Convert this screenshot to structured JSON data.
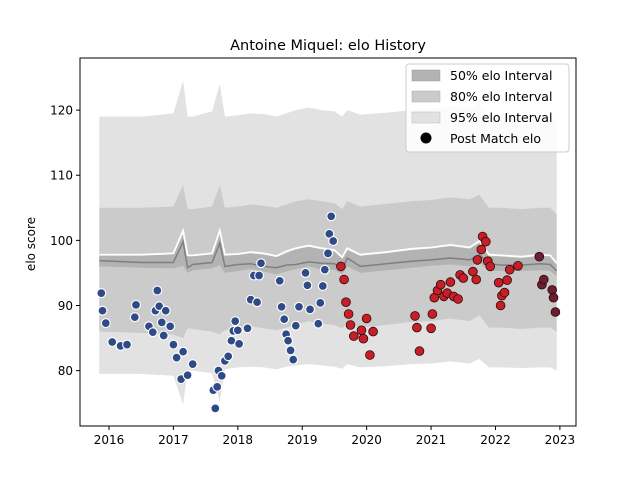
{
  "chart_data": {
    "type": "scatter",
    "title": "Antoine Miquel: elo History",
    "xlabel": "",
    "ylabel": "elo score",
    "xlim": [
      2015.55,
      2023.25
    ],
    "ylim": [
      71.5,
      128.0
    ],
    "x_ticks": [
      2016,
      2017,
      2018,
      2019,
      2020,
      2021,
      2022,
      2023
    ],
    "x_tick_labels": [
      "2016",
      "2017",
      "2018",
      "2019",
      "2020",
      "2021",
      "2022",
      "2023"
    ],
    "y_ticks": [
      80,
      90,
      100,
      110,
      120
    ],
    "y_tick_labels": [
      "80",
      "90",
      "100",
      "110",
      "120"
    ],
    "legend": {
      "placement": "top-right",
      "entries": [
        "50% elo Interval",
        "80% elo Interval",
        "95% elo Interval",
        "Post Match elo"
      ]
    },
    "colors": {
      "band_50": "#b3b3b3",
      "band_80": "#cbcbcb",
      "band_95": "#e2e2e2",
      "median_line": "#7f7f7f",
      "mean_line": "#ffffff",
      "early_points": "#2e4a87",
      "late_points": "#c81e28",
      "final_points": "#6e1e32"
    },
    "intervals": {
      "x": [
        2015.85,
        2016.5,
        2017.0,
        2017.15,
        2017.22,
        2017.3,
        2017.6,
        2017.72,
        2017.8,
        2018.0,
        2018.2,
        2018.4,
        2018.6,
        2018.75,
        2018.9,
        2019.1,
        2019.3,
        2019.5,
        2019.62,
        2019.7,
        2019.9,
        2020.3,
        2020.7,
        2021.0,
        2021.3,
        2021.6,
        2021.75,
        2021.9,
        2022.1,
        2022.4,
        2022.7,
        2022.85,
        2022.95
      ],
      "mean": [
        97.8,
        97.8,
        98.0,
        101.5,
        97.7,
        97.7,
        98.0,
        101.5,
        97.8,
        97.9,
        98.2,
        98.0,
        97.6,
        98.3,
        98.8,
        99.2,
        98.8,
        98.5,
        97.4,
        98.8,
        97.8,
        98.2,
        98.7,
        98.9,
        99.3,
        98.9,
        99.9,
        97.8,
        97.7,
        97.5,
        97.8,
        97.7,
        96.5
      ],
      "median": [
        96.9,
        96.6,
        96.6,
        99.8,
        95.8,
        96.3,
        96.6,
        99.6,
        96.0,
        96.3,
        96.4,
        96.0,
        95.8,
        96.2,
        96.3,
        96.7,
        96.5,
        96.4,
        95.6,
        97.3,
        96.0,
        96.4,
        96.8,
        97.0,
        97.3,
        97.0,
        97.8,
        96.4,
        96.2,
        96.2,
        96.4,
        96.3,
        95.3
      ],
      "p50_low": [
        96.0,
        95.8,
        95.7,
        96.1,
        95.0,
        95.4,
        95.7,
        96.2,
        95.0,
        95.3,
        95.6,
        95.2,
        94.8,
        95.2,
        95.6,
        96.0,
        95.5,
        95.5,
        94.8,
        96.0,
        95.0,
        95.4,
        95.8,
        96.1,
        96.3,
        96.0,
        96.6,
        95.3,
        95.3,
        95.3,
        95.4,
        95.3,
        94.5
      ],
      "p50_high": [
        98.0,
        97.9,
        98.0,
        101.2,
        97.6,
        97.6,
        97.9,
        101.3,
        97.7,
        97.8,
        98.0,
        97.8,
        97.4,
        98.0,
        98.6,
        99.0,
        98.6,
        98.3,
        97.2,
        98.5,
        97.6,
        98.0,
        98.5,
        98.7,
        99.1,
        98.7,
        99.6,
        97.6,
        97.5,
        97.3,
        97.6,
        97.5,
        96.3
      ],
      "p80_low": [
        86.0,
        85.8,
        85.5,
        85.0,
        86.5,
        86.4,
        86.0,
        85.6,
        86.2,
        86.5,
        86.8,
        86.5,
        86.2,
        86.6,
        87.0,
        87.6,
        87.2,
        87.0,
        86.5,
        87.5,
        86.6,
        87.0,
        87.5,
        87.6,
        88.0,
        87.6,
        88.5,
        86.6,
        86.6,
        86.4,
        86.6,
        86.6,
        86.0
      ],
      "p80_high": [
        105.0,
        105.0,
        105.2,
        108.5,
        104.8,
        104.8,
        105.2,
        108.5,
        105.0,
        105.2,
        105.5,
        105.3,
        105.0,
        105.5,
        106.0,
        106.3,
        106.0,
        105.7,
        104.8,
        106.0,
        105.2,
        105.6,
        106.0,
        106.2,
        106.6,
        106.3,
        107.0,
        105.0,
        105.0,
        104.8,
        105.0,
        105.0,
        104.0
      ],
      "p95_low": [
        79.5,
        79.5,
        79.2,
        74.8,
        80.0,
        80.0,
        79.6,
        75.2,
        80.2,
        80.5,
        80.6,
        80.5,
        80.2,
        80.6,
        80.8,
        81.0,
        80.8,
        80.6,
        80.3,
        81.0,
        80.5,
        80.7,
        81.0,
        81.1,
        81.4,
        81.1,
        81.8,
        80.5,
        80.5,
        80.4,
        80.5,
        80.5,
        80.0
      ],
      "p95_high": [
        119.0,
        119.0,
        119.5,
        124.5,
        119.0,
        119.0,
        119.8,
        124.0,
        119.0,
        119.2,
        119.5,
        119.4,
        119.0,
        119.5,
        120.0,
        120.4,
        120.0,
        119.8,
        119.0,
        120.0,
        119.3,
        119.6,
        120.0,
        120.2,
        120.6,
        120.3,
        121.0,
        119.2,
        119.2,
        119.0,
        119.2,
        119.2,
        118.3
      ]
    },
    "series": [
      {
        "group": "early",
        "x": [
          2015.88,
          2015.9,
          2015.95,
          2016.05,
          2016.18,
          2016.28,
          2016.4,
          2016.42,
          2016.62,
          2016.68,
          2016.72,
          2016.75,
          2016.78,
          2016.82,
          2016.85,
          2016.88,
          2016.95,
          2017.0,
          2017.05,
          2017.12,
          2017.15,
          2017.22,
          2017.3,
          2017.62,
          2017.65,
          2017.68,
          2017.7,
          2017.75,
          2017.8,
          2017.85,
          2017.9,
          2017.93,
          2017.96,
          2018.0,
          2018.02,
          2018.15,
          2018.2,
          2018.25,
          2018.3,
          2018.33,
          2018.36,
          2018.65,
          2018.68,
          2018.72,
          2018.75,
          2018.78,
          2018.82,
          2018.86,
          2018.9,
          2018.95,
          2019.05,
          2019.08,
          2019.12,
          2019.25,
          2019.28,
          2019.32,
          2019.35,
          2019.4
        ],
        "y": [
          91.9,
          89.2,
          87.3,
          84.4,
          83.8,
          84.0,
          88.2,
          90.1,
          86.8,
          85.9,
          89.2,
          92.3,
          89.9,
          87.4,
          85.4,
          89.2,
          86.8,
          84.0,
          82.0,
          78.7,
          82.9,
          79.3,
          81.0,
          77.0,
          74.2,
          77.5,
          80.0,
          79.2,
          81.5,
          82.2,
          84.6,
          86.1,
          87.6,
          86.2,
          84.1,
          86.5,
          90.9,
          94.6,
          90.5,
          94.6,
          96.5,
          93.8,
          89.8,
          87.9,
          85.6,
          84.6,
          83.1,
          81.7,
          86.9,
          89.8,
          95.0,
          93.1,
          89.4,
          87.2,
          90.4,
          93.0,
          95.5,
          98.0
        ],
        "extra_x": [
          2019.42,
          2019.45,
          2019.48
        ],
        "extra_y": [
          101.0,
          103.7,
          99.9
        ]
      },
      {
        "group": "late",
        "x": [
          2019.6,
          2019.65,
          2019.68,
          2019.72,
          2019.75,
          2019.8,
          2019.92,
          2019.95,
          2020.0,
          2020.05,
          2020.1,
          2020.75,
          2020.78,
          2020.82,
          2021.0,
          2021.02,
          2021.05,
          2021.1,
          2021.15,
          2021.2,
          2021.25,
          2021.3,
          2021.35,
          2021.42,
          2021.45,
          2021.5,
          2021.65,
          2021.7,
          2021.72,
          2021.78,
          2021.8,
          2021.85,
          2021.88,
          2021.92,
          2022.05,
          2022.08,
          2022.1,
          2022.14,
          2022.18,
          2022.22,
          2022.35
        ],
        "y": [
          96.0,
          94.0,
          90.5,
          88.7,
          87.0,
          85.3,
          86.2,
          84.9,
          88.0,
          82.4,
          86.0,
          88.4,
          86.6,
          83.0,
          86.5,
          88.7,
          91.2,
          92.3,
          93.2,
          91.4,
          91.9,
          93.6,
          91.4,
          91.0,
          94.7,
          94.2,
          95.2,
          94.0,
          97.0,
          98.6,
          100.6,
          99.8,
          96.8,
          96.0,
          93.5,
          90.0,
          91.5,
          92.0,
          93.9,
          95.5,
          96.1
        ]
      },
      {
        "group": "final",
        "x": [
          2022.68,
          2022.72,
          2022.75,
          2022.88,
          2022.9,
          2022.93
        ],
        "y": [
          97.5,
          93.2,
          94.0,
          92.4,
          91.2,
          89.0
        ]
      }
    ]
  }
}
